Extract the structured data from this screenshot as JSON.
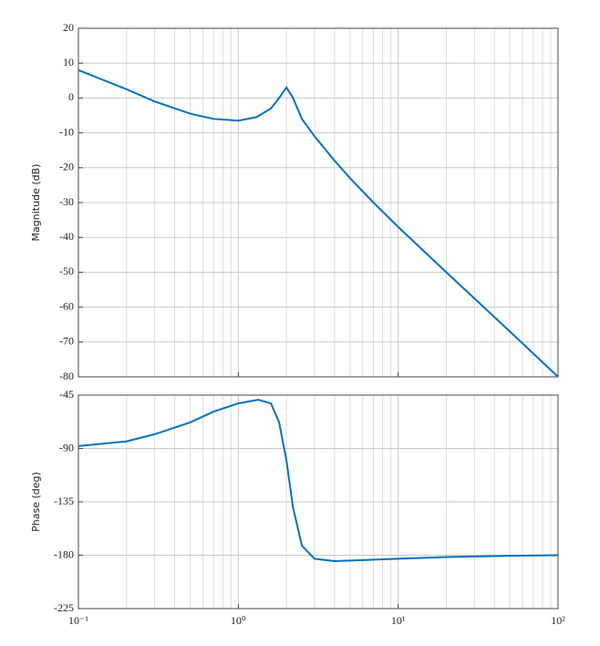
{
  "chart_data": [
    {
      "type": "line",
      "ylabel": "Magnitude (dB)",
      "xscale": "log",
      "grid": true,
      "minor_grid": true,
      "color": "#0072bd",
      "xlim": [
        0.1,
        100
      ],
      "xticks": [
        0.1,
        1,
        10,
        100
      ],
      "ylim": [
        -80,
        20
      ],
      "yticks": [
        -80,
        -70,
        -60,
        -50,
        -40,
        -30,
        -20,
        -10,
        0,
        10,
        20
      ],
      "x": [
        0.1,
        0.2,
        0.3,
        0.5,
        0.7,
        1,
        1.3,
        1.6,
        1.8,
        2,
        2.2,
        2.5,
        3,
        4,
        5,
        7,
        10,
        20,
        50,
        100
      ],
      "values": [
        8,
        2.5,
        -1,
        -4.5,
        -6,
        -6.5,
        -5.5,
        -3,
        0,
        3,
        0,
        -6,
        -11,
        -18,
        -23,
        -30,
        -37,
        -50,
        -67,
        -80
      ]
    },
    {
      "type": "line",
      "ylabel": "Phase (deg)",
      "xscale": "log",
      "grid": true,
      "minor_grid": true,
      "color": "#0072bd",
      "xlim": [
        0.1,
        100
      ],
      "xticks": [
        {
          "value": 0.1,
          "label": "10⁻¹"
        },
        {
          "value": 1,
          "label": "10⁰"
        },
        {
          "value": 10,
          "label": "10¹"
        },
        {
          "value": 100,
          "label": "10²"
        }
      ],
      "ylim": [
        -225,
        -45
      ],
      "yticks": [
        -225,
        -180,
        -135,
        -90,
        -45
      ],
      "x": [
        0.1,
        0.2,
        0.3,
        0.5,
        0.7,
        1,
        1.33,
        1.6,
        1.8,
        2,
        2.2,
        2.5,
        3,
        4,
        5,
        10,
        20,
        50,
        100
      ],
      "values": [
        -88,
        -84,
        -78,
        -68,
        -59,
        -52,
        -49,
        -52,
        -68,
        -100,
        -140,
        -172,
        -183,
        -185,
        -184.5,
        -183,
        -181.5,
        -180.5,
        -180
      ]
    }
  ]
}
